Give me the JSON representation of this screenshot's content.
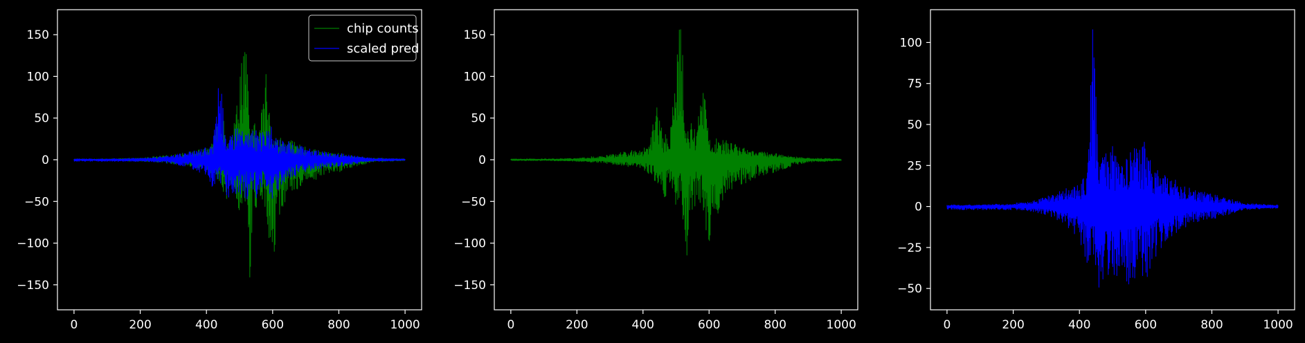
{
  "chart_data": [
    {
      "type": "line",
      "title": "",
      "xlabel": "",
      "ylabel": "",
      "xlim": [
        -50,
        1050
      ],
      "ylim": [
        -180,
        180
      ],
      "xticks": [
        0,
        200,
        400,
        600,
        800,
        1000
      ],
      "yticks": [
        -150,
        -100,
        -50,
        0,
        50,
        100,
        150
      ],
      "grid": false,
      "legend_position": "upper right",
      "series": [
        {
          "name": "chip counts",
          "color": "#008000",
          "sampling": "envelope of a dense signal, x=0..1000",
          "x": [
            0,
            100,
            200,
            250,
            300,
            350,
            400,
            420,
            440,
            460,
            480,
            500,
            510,
            520,
            530,
            540,
            560,
            580,
            600,
            620,
            650,
            700,
            750,
            800,
            850,
            900,
            1000
          ],
          "upper": [
            1,
            1,
            2,
            4,
            6,
            10,
            14,
            20,
            85,
            32,
            30,
            110,
            165,
            155,
            40,
            45,
            40,
            108,
            30,
            28,
            24,
            15,
            10,
            8,
            4,
            2,
            1
          ],
          "lower": [
            -1,
            -1,
            -2,
            -3,
            -5,
            -8,
            -12,
            -18,
            -30,
            -50,
            -35,
            -62,
            -48,
            -62,
            -165,
            -70,
            -55,
            -60,
            -140,
            -72,
            -40,
            -30,
            -20,
            -15,
            -8,
            -3,
            -1
          ]
        },
        {
          "name": "scaled pred",
          "color": "#0000ff",
          "sampling": "envelope of a dense signal, x=0..1000",
          "x": [
            0,
            100,
            200,
            250,
            300,
            350,
            400,
            420,
            440,
            460,
            480,
            500,
            520,
            540,
            560,
            580,
            600,
            620,
            650,
            700,
            750,
            800,
            850,
            900,
            1000
          ],
          "upper": [
            1,
            1,
            2,
            3,
            6,
            10,
            15,
            20,
            112,
            30,
            35,
            40,
            30,
            42,
            35,
            38,
            40,
            25,
            22,
            15,
            10,
            8,
            5,
            2,
            1
          ],
          "lower": [
            -2,
            -2,
            -2,
            -3,
            -5,
            -10,
            -20,
            -35,
            -30,
            -52,
            -40,
            -45,
            -48,
            -45,
            -52,
            -35,
            -50,
            -35,
            -25,
            -15,
            -10,
            -8,
            -5,
            -2,
            -1
          ]
        }
      ]
    },
    {
      "type": "line",
      "title": "",
      "xlabel": "",
      "ylabel": "",
      "xlim": [
        -50,
        1050
      ],
      "ylim": [
        -180,
        180
      ],
      "xticks": [
        0,
        200,
        400,
        600,
        800,
        1000
      ],
      "yticks": [
        -150,
        -100,
        -50,
        0,
        50,
        100,
        150
      ],
      "grid": false,
      "series": [
        {
          "name": "chip counts",
          "color": "#008000",
          "sampling": "envelope of a dense signal, x=0..1000",
          "x": [
            0,
            100,
            200,
            250,
            300,
            350,
            400,
            420,
            440,
            460,
            480,
            500,
            510,
            520,
            530,
            540,
            560,
            580,
            600,
            620,
            650,
            700,
            750,
            800,
            850,
            900,
            1000
          ],
          "upper": [
            1,
            1,
            2,
            4,
            6,
            10,
            14,
            20,
            85,
            32,
            30,
            110,
            165,
            155,
            40,
            45,
            40,
            108,
            30,
            28,
            24,
            15,
            10,
            8,
            4,
            2,
            1
          ],
          "lower": [
            -1,
            -1,
            -2,
            -3,
            -5,
            -8,
            -12,
            -18,
            -30,
            -50,
            -35,
            -62,
            -48,
            -62,
            -165,
            -70,
            -55,
            -60,
            -140,
            -72,
            -40,
            -30,
            -20,
            -15,
            -8,
            -3,
            -1
          ]
        }
      ]
    },
    {
      "type": "line",
      "title": "",
      "xlabel": "",
      "ylabel": "",
      "xlim": [
        -50,
        1050
      ],
      "ylim": [
        -63,
        120
      ],
      "xticks": [
        0,
        200,
        400,
        600,
        800,
        1000
      ],
      "yticks": [
        -50,
        -25,
        0,
        25,
        50,
        75,
        100
      ],
      "grid": false,
      "series": [
        {
          "name": "scaled pred",
          "color": "#0000ff",
          "sampling": "envelope of a dense signal, x=0..1000",
          "x": [
            0,
            100,
            200,
            250,
            300,
            350,
            400,
            420,
            440,
            460,
            480,
            500,
            520,
            540,
            560,
            580,
            600,
            620,
            650,
            700,
            750,
            800,
            850,
            900,
            1000
          ],
          "upper": [
            1,
            1,
            2,
            3,
            6,
            10,
            15,
            20,
            112,
            30,
            35,
            40,
            30,
            42,
            35,
            38,
            40,
            25,
            22,
            15,
            10,
            8,
            5,
            2,
            1
          ],
          "lower": [
            -2,
            -2,
            -2,
            -3,
            -5,
            -10,
            -20,
            -35,
            -30,
            -52,
            -40,
            -45,
            -48,
            -45,
            -52,
            -35,
            -50,
            -35,
            -25,
            -15,
            -10,
            -8,
            -5,
            -2,
            -1
          ]
        }
      ]
    }
  ]
}
